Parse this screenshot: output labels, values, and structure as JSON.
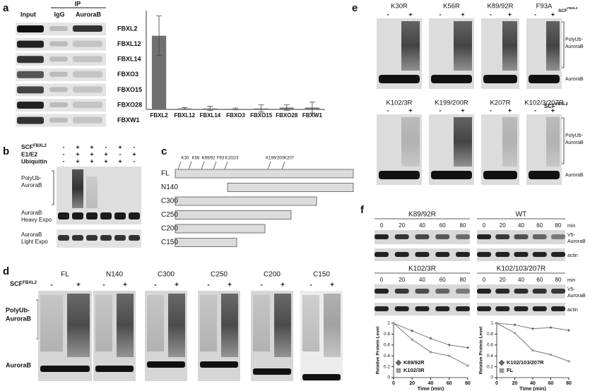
{
  "panel_labels": [
    "a",
    "b",
    "c",
    "d",
    "e",
    "f"
  ],
  "common": {
    "scf": "SCF",
    "fbxl2": "FBXL2",
    "minus": "-",
    "plus": "+",
    "polyub": "PolyUb-",
    "aurorab": "AuroraB"
  },
  "panel_a": {
    "ip": "IP",
    "input": "Input",
    "igg": "IgG",
    "aurorab": "AuroraB",
    "rows": [
      "FBXL2",
      "FBXL12",
      "FBXL14",
      "FBXO3",
      "FBXO15",
      "FBXO28",
      "FBXW1"
    ]
  },
  "panel_b": {
    "rows": [
      "E1/E2",
      "Ubiquitin"
    ],
    "signs": [
      [
        "-",
        "+",
        "+",
        "-",
        "+",
        "-"
      ],
      [
        "-",
        "+",
        "+",
        "+",
        "-",
        "+"
      ],
      [
        "-",
        "+",
        "+",
        "+",
        "+",
        "-"
      ]
    ],
    "heavy": "Heavy Expo",
    "light": "Light Expo"
  },
  "panel_c": {
    "sites": [
      "K30",
      "K56",
      "K89/92",
      "F93",
      "K102/3",
      "K199/200",
      "K207"
    ],
    "constructs": [
      "FL",
      "N140",
      "C300",
      "C250",
      "C200",
      "C150"
    ]
  },
  "panel_d": {
    "constructs": [
      "FL",
      "N140",
      "C300",
      "C250",
      "C200",
      "C150"
    ]
  },
  "panel_e": {
    "top": [
      "K30R",
      "K56R",
      "K89/92R",
      "F93A"
    ],
    "bottom": [
      "K102/3R",
      "K199/200R",
      "K207R",
      "K102/3/207R"
    ]
  },
  "panel_f": {
    "groups": [
      "K89/92R",
      "WT",
      "K102/3R",
      "K102/103/207R"
    ],
    "times": [
      0,
      20,
      40,
      60,
      80
    ],
    "min": "min",
    "v5": "V5-",
    "actin": "actin"
  },
  "chart_data": [
    {
      "type": "bar",
      "categories": [
        "FBXL2",
        "FBXL12",
        "FBXL14",
        "FBXO3",
        "FBXO15",
        "FBXO28",
        "FBXW1"
      ],
      "values": [
        4.1,
        0.05,
        0.05,
        0.03,
        0.05,
        0.1,
        0.1
      ],
      "errors": [
        1.1,
        0.05,
        0.12,
        0.05,
        0.2,
        0.15,
        0.3
      ],
      "color": "#707070",
      "ylim": [
        0,
        5.5
      ]
    },
    {
      "type": "line",
      "x": [
        0,
        20,
        40,
        60,
        80
      ],
      "xlabel": "Time (min)",
      "ylabel": "Relative Protein Level",
      "xlim": [
        0,
        80
      ],
      "ylim": [
        0,
        1
      ],
      "xticks": [
        0,
        20,
        40,
        60,
        80
      ],
      "yticks": [
        0,
        0.2,
        0.4,
        0.6,
        0.8,
        1
      ],
      "legend": "lower left",
      "series": [
        {
          "name": "K89/92R",
          "color": "#666666",
          "marker": "diamond",
          "values": [
            1,
            0.86,
            0.72,
            0.6,
            0.55
          ]
        },
        {
          "name": "K102/3R",
          "color": "#999999",
          "marker": "square",
          "values": [
            1,
            0.7,
            0.47,
            0.4,
            0.22
          ]
        }
      ]
    },
    {
      "type": "line",
      "x": [
        0,
        20,
        40,
        60,
        80
      ],
      "xlabel": "Time (min)",
      "ylabel": "Relative Protein Level",
      "xlim": [
        0,
        80
      ],
      "ylim": [
        0,
        1
      ],
      "xticks": [
        0,
        20,
        40,
        60,
        80
      ],
      "yticks": [
        0,
        0.2,
        0.4,
        0.6,
        0.8,
        1
      ],
      "legend": "lower left",
      "series": [
        {
          "name": "K102/103/207R",
          "color": "#666666",
          "marker": "diamond",
          "values": [
            1,
            0.97,
            0.9,
            0.92,
            0.87
          ]
        },
        {
          "name": "FL",
          "color": "#999999",
          "marker": "square",
          "values": [
            1,
            0.82,
            0.5,
            0.42,
            0.3
          ]
        }
      ]
    }
  ]
}
